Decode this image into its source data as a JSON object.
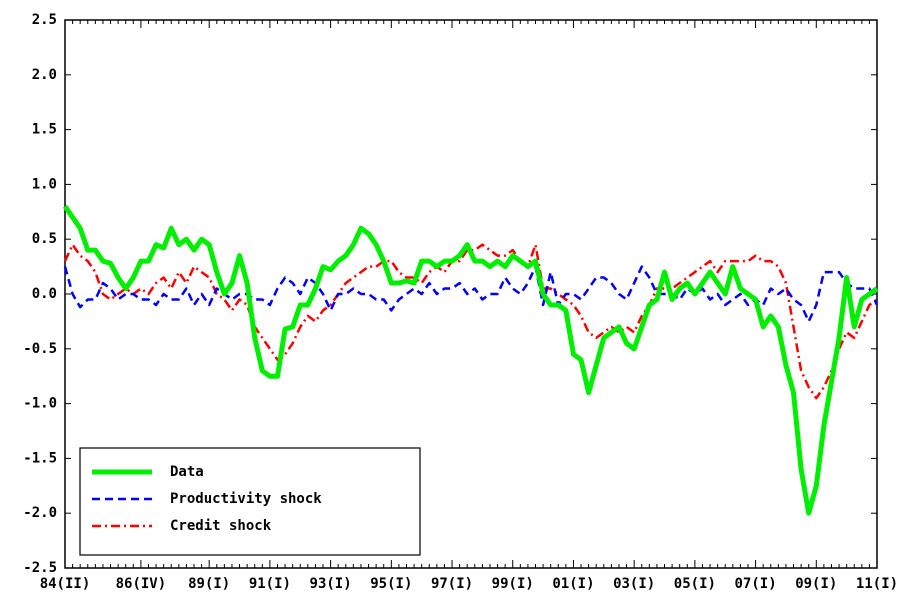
{
  "chart_data": {
    "type": "line",
    "categories": [
      "84(II)",
      null,
      null,
      null,
      null,
      null,
      null,
      null,
      null,
      null,
      "86(IV)",
      null,
      null,
      null,
      null,
      null,
      null,
      null,
      null,
      "89(I)",
      null,
      null,
      null,
      null,
      null,
      null,
      null,
      "91(I)",
      null,
      null,
      null,
      null,
      null,
      null,
      null,
      "93(I)",
      null,
      null,
      null,
      null,
      null,
      null,
      null,
      "95(I)",
      null,
      null,
      null,
      null,
      null,
      null,
      null,
      "97(I)",
      null,
      null,
      null,
      null,
      null,
      null,
      null,
      "99(I)",
      null,
      null,
      null,
      null,
      null,
      null,
      null,
      "01(I)",
      null,
      null,
      null,
      null,
      null,
      null,
      null,
      "03(I)",
      null,
      null,
      null,
      null,
      null,
      null,
      null,
      "05(I)",
      null,
      null,
      null,
      null,
      null,
      null,
      null,
      "07(I)",
      null,
      null,
      null,
      null,
      null,
      null,
      null,
      "09(I)",
      null,
      null,
      null,
      null,
      null,
      null,
      null,
      "11(I)"
    ],
    "series": [
      {
        "name": "Data",
        "color": "#00ee00",
        "line_style": "solid",
        "line_width": 5,
        "values": [
          0.8,
          0.7,
          0.6,
          0.4,
          0.4,
          0.3,
          0.28,
          0.15,
          0.05,
          0.15,
          0.3,
          0.3,
          0.45,
          0.42,
          0.6,
          0.45,
          0.5,
          0.4,
          0.5,
          0.45,
          0.2,
          0.0,
          0.1,
          0.35,
          0.1,
          -0.4,
          -0.7,
          -0.75,
          -0.75,
          -0.32,
          -0.3,
          -0.1,
          -0.1,
          0.05,
          0.25,
          0.22,
          0.3,
          0.35,
          0.45,
          0.6,
          0.55,
          0.45,
          0.3,
          0.1,
          0.1,
          0.12,
          0.1,
          0.3,
          0.3,
          0.25,
          0.3,
          0.3,
          0.35,
          0.45,
          0.3,
          0.3,
          0.25,
          0.3,
          0.25,
          0.35,
          0.3,
          0.25,
          0.3,
          0.0,
          -0.1,
          -0.1,
          -0.15,
          -0.55,
          -0.6,
          -0.9,
          -0.65,
          -0.4,
          -0.35,
          -0.3,
          -0.45,
          -0.5,
          -0.3,
          -0.1,
          -0.05,
          0.2,
          -0.05,
          0.05,
          0.1,
          0.0,
          0.1,
          0.2,
          0.1,
          0.0,
          0.25,
          0.05,
          0.0,
          -0.05,
          -0.3,
          -0.2,
          -0.3,
          -0.65,
          -0.9,
          -1.6,
          -2.0,
          -1.75,
          -1.2,
          -0.8,
          -0.4,
          0.15,
          -0.3,
          -0.05,
          0.0,
          0.05
        ]
      },
      {
        "name": "Productivity shock",
        "color": "#0000ff",
        "line_style": "dashed",
        "line_width": 2.5,
        "values": [
          0.25,
          0.0,
          -0.12,
          -0.05,
          -0.05,
          0.1,
          0.05,
          -0.05,
          0.0,
          0.0,
          -0.05,
          -0.05,
          -0.1,
          0.0,
          -0.05,
          -0.05,
          0.05,
          -0.1,
          0.0,
          -0.1,
          0.05,
          0.0,
          -0.05,
          0.0,
          0.0,
          -0.05,
          -0.05,
          -0.1,
          0.05,
          0.15,
          0.1,
          0.0,
          0.15,
          0.1,
          0.0,
          -0.15,
          0.0,
          0.0,
          0.05,
          0.0,
          0.0,
          -0.05,
          -0.05,
          -0.15,
          -0.05,
          0.0,
          0.05,
          0.0,
          0.1,
          0.0,
          0.05,
          0.05,
          0.1,
          0.0,
          0.05,
          -0.05,
          0.0,
          0.0,
          0.15,
          0.05,
          0.0,
          0.1,
          0.25,
          -0.1,
          0.2,
          -0.1,
          0.0,
          0.0,
          -0.05,
          0.05,
          0.15,
          0.15,
          0.1,
          0.0,
          -0.05,
          0.1,
          0.25,
          0.15,
          0.0,
          0.0,
          0.0,
          -0.05,
          0.05,
          0.0,
          0.05,
          -0.05,
          0.0,
          -0.1,
          -0.05,
          0.0,
          -0.1,
          -0.05,
          -0.1,
          0.05,
          0.0,
          0.05,
          -0.05,
          -0.1,
          -0.25,
          -0.1,
          0.2,
          0.2,
          0.2,
          0.1,
          0.05,
          0.05,
          0.05,
          -0.1
        ]
      },
      {
        "name": "Credit shock",
        "color": "#ff0000",
        "line_style": "dashdot",
        "line_width": 2.5,
        "values": [
          0.3,
          0.45,
          0.35,
          0.3,
          0.2,
          0.0,
          -0.05,
          0.0,
          0.05,
          0.0,
          0.05,
          0.0,
          0.1,
          0.15,
          0.05,
          0.2,
          0.1,
          0.25,
          0.2,
          0.15,
          0.0,
          -0.05,
          -0.15,
          -0.05,
          -0.1,
          -0.3,
          -0.4,
          -0.5,
          -0.6,
          -0.55,
          -0.45,
          -0.3,
          -0.2,
          -0.25,
          -0.15,
          -0.1,
          0.0,
          0.1,
          0.15,
          0.2,
          0.25,
          0.25,
          0.3,
          0.3,
          0.2,
          0.15,
          0.15,
          0.1,
          0.2,
          0.25,
          0.2,
          0.3,
          0.3,
          0.4,
          0.4,
          0.45,
          0.4,
          0.35,
          0.35,
          0.4,
          0.3,
          0.25,
          0.45,
          0.05,
          0.05,
          0.0,
          -0.05,
          -0.1,
          -0.2,
          -0.35,
          -0.4,
          -0.35,
          -0.3,
          -0.35,
          -0.3,
          -0.35,
          -0.2,
          -0.1,
          0.05,
          0.05,
          0.05,
          0.1,
          0.15,
          0.2,
          0.25,
          0.3,
          0.2,
          0.3,
          0.3,
          0.3,
          0.3,
          0.35,
          0.3,
          0.3,
          0.25,
          0.1,
          -0.3,
          -0.7,
          -0.85,
          -0.95,
          -0.85,
          -0.7,
          -0.5,
          -0.35,
          -0.4,
          -0.25,
          -0.1,
          -0.05
        ]
      }
    ],
    "ylim": [
      -2.5,
      2.5
    ],
    "yticks": [
      -2.5,
      {
        "value": -2,
        "label": "-2.0"
      },
      -1.5,
      {
        "value": -1,
        "label": "-1.0"
      },
      -0.5,
      {
        "value": 0,
        "label": "0.0"
      },
      0.5,
      {
        "value": 1,
        "label": "1.0"
      },
      1.5,
      {
        "value": 2,
        "label": "2.0"
      },
      2.5
    ],
    "grid": false,
    "legend": "lower-left"
  }
}
